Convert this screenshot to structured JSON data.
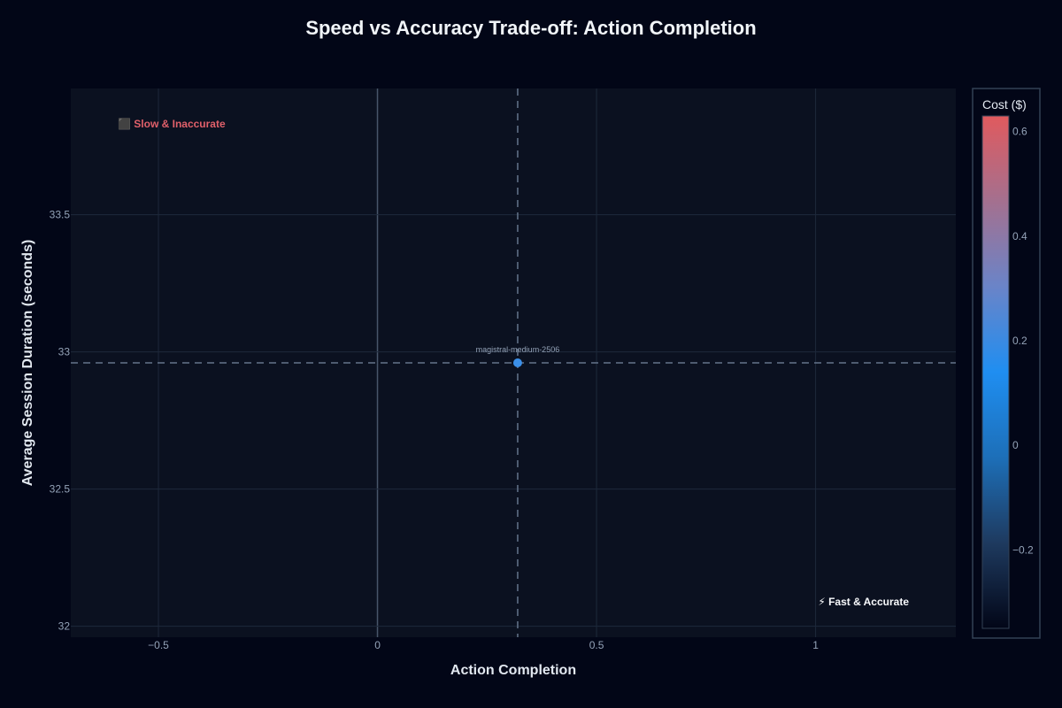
{
  "chart_data": {
    "type": "scatter",
    "title": "Speed vs Accuracy Trade-off: Action Completion",
    "xlabel": "Action Completion",
    "ylabel": "Average Session Duration (seconds)",
    "xlim": [
      -0.7,
      1.32
    ],
    "ylim": [
      31.96,
      33.96
    ],
    "x_ticks": [
      -0.5,
      0,
      0.5,
      1
    ],
    "x_tick_labels": [
      "−0.5",
      "0",
      "0.5",
      "1"
    ],
    "y_ticks": [
      32,
      32.5,
      33,
      33.5
    ],
    "y_tick_labels": [
      "32",
      "32.5",
      "33",
      "33.5"
    ],
    "grid": true,
    "points": [
      {
        "x": 0.32,
        "y": 32.96,
        "cost": 0.05,
        "label": "magistral-medium-2506"
      }
    ],
    "reference_lines": {
      "x": 0.32,
      "y": 32.96
    },
    "colorbar": {
      "title": "Cost ($)",
      "range": [
        -0.35,
        0.63
      ],
      "ticks": [
        0.6,
        0.4,
        0.2,
        0,
        -0.2
      ],
      "tick_labels": [
        "0.6",
        "0.4",
        "0.2",
        "0",
        "−0.2"
      ],
      "colors": [
        "#020617",
        "#1e3a5f",
        "#1d6fb8",
        "#1f8ef1",
        "#6a84c8",
        "#a4708f",
        "#e05a5e"
      ]
    },
    "annotations": {
      "slow": "⬛ Slow & Inaccurate",
      "fast": "⚡ Fast & Accurate"
    },
    "colors": {
      "plot_bg": "#0b1120",
      "grid": "#1e293b",
      "zero_line": "#475569",
      "ref_line": "#64748b",
      "point": "#3b8fe8"
    }
  }
}
